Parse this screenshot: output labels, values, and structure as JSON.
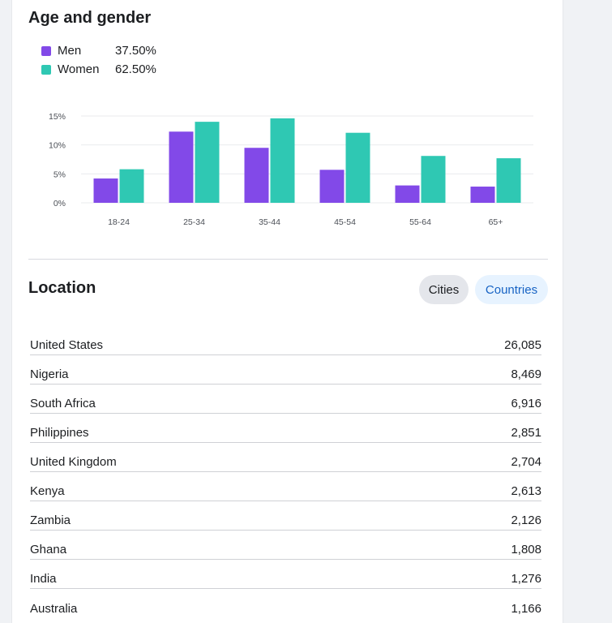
{
  "age_gender": {
    "title": "Age and gender",
    "legend": [
      {
        "label": "Men",
        "value": "37.50%",
        "color": "#8249e8"
      },
      {
        "label": "Women",
        "value": "62.50%",
        "color": "#2fc8b3"
      }
    ]
  },
  "chart_data": {
    "type": "bar",
    "categories": [
      "18-24",
      "25-34",
      "35-44",
      "45-54",
      "55-64",
      "65+"
    ],
    "series": [
      {
        "name": "Men",
        "color": "#8249e8",
        "values": [
          4.2,
          12.3,
          9.5,
          5.7,
          3.0,
          2.8
        ]
      },
      {
        "name": "Women",
        "color": "#2fc8b3",
        "values": [
          5.8,
          14.0,
          14.6,
          12.1,
          8.1,
          7.7
        ]
      }
    ],
    "yticks": [
      "0%",
      "5%",
      "10%",
      "15%"
    ],
    "ylim": [
      0,
      15
    ],
    "grid": true
  },
  "location": {
    "title": "Location",
    "tabs": {
      "cities": "Cities",
      "countries": "Countries"
    },
    "rows": [
      {
        "name": "United States",
        "value": "26,085"
      },
      {
        "name": "Nigeria",
        "value": "8,469"
      },
      {
        "name": "South Africa",
        "value": "6,916"
      },
      {
        "name": "Philippines",
        "value": "2,851"
      },
      {
        "name": "United Kingdom",
        "value": "2,704"
      },
      {
        "name": "Kenya",
        "value": "2,613"
      },
      {
        "name": "Zambia",
        "value": "2,126"
      },
      {
        "name": "Ghana",
        "value": "1,808"
      },
      {
        "name": "India",
        "value": "1,276"
      },
      {
        "name": "Australia",
        "value": "1,166"
      }
    ]
  }
}
